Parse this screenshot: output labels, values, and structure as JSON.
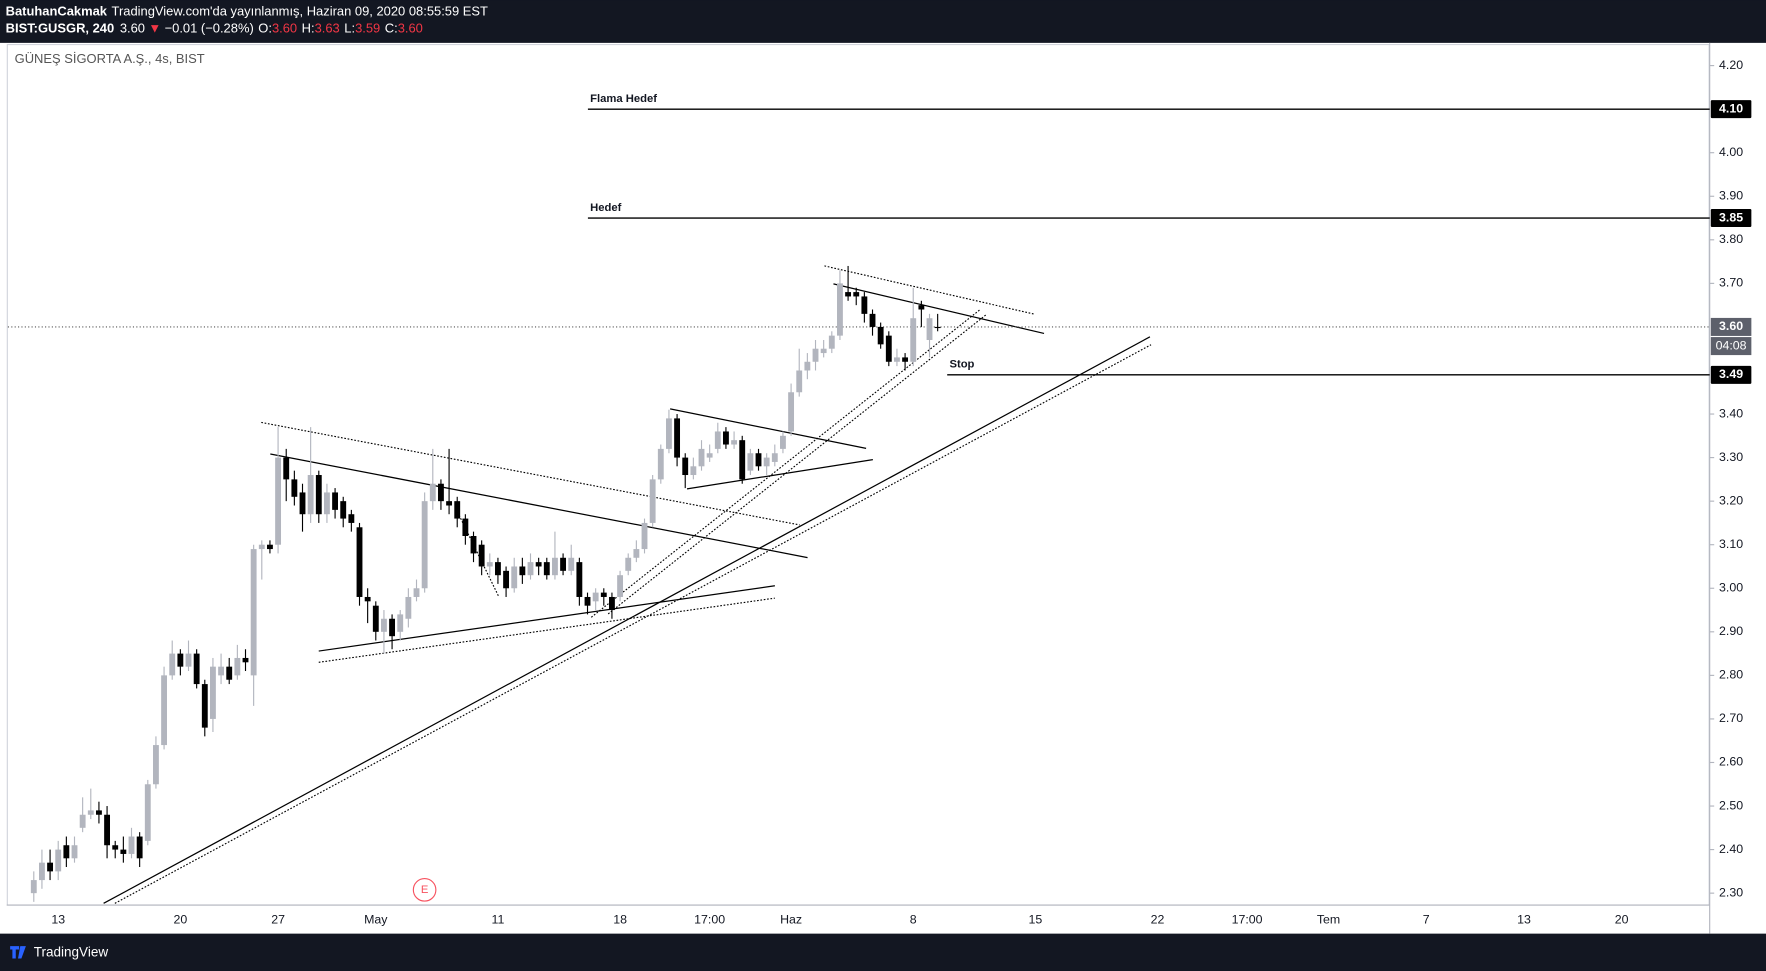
{
  "header": {
    "author": "BatuhanCakmak",
    "published": "TradingView.com'da yayınlanmış, Haziran 09, 2020 08:55:59 EST",
    "symbol": "BIST:GUSGR, 240",
    "price": "3.60",
    "arrow": "▼",
    "change": "−0.01 (−0.28%)",
    "ohlc": [
      {
        "key": "O:",
        "value": "3.60"
      },
      {
        "key": "H:",
        "value": "3.63"
      },
      {
        "key": "L:",
        "value": "3.59"
      },
      {
        "key": "C:",
        "value": "3.60"
      }
    ]
  },
  "footer": {
    "brand": "TradingView"
  },
  "chart_data": {
    "type": "candlestick",
    "title": "GÜNEŞ SİGORTA A.Ş., 4s, BIST",
    "up_color": "#b2b5be",
    "down_color": "#000000",
    "categories": [
      null,
      null,
      null,
      "13",
      null,
      null,
      null,
      null,
      null,
      null,
      null,
      null,
      null,
      null,
      null,
      null,
      null,
      null,
      "20",
      null,
      null,
      null,
      null,
      null,
      null,
      null,
      null,
      null,
      null,
      null,
      "27",
      null,
      null,
      null,
      null,
      null,
      null,
      null,
      null,
      null,
      null,
      null,
      "May",
      null,
      null,
      null,
      null,
      null,
      null,
      null,
      null,
      null,
      null,
      null,
      null,
      null,
      null,
      "11",
      null,
      null,
      null,
      null,
      null,
      null,
      null,
      null,
      null,
      null,
      null,
      null,
      null,
      null,
      "18",
      null,
      null,
      null,
      null,
      null,
      null,
      null,
      null,
      null,
      null,
      "17:00",
      null,
      null,
      null,
      null,
      null,
      null,
      null,
      null,
      null,
      "Haz",
      null,
      null,
      null,
      null,
      null,
      null,
      null,
      null,
      null,
      null,
      null,
      null,
      null,
      null,
      "8",
      null,
      null,
      null,
      null,
      null,
      null,
      null,
      null,
      null,
      null,
      null,
      null,
      null,
      null,
      "15",
      null,
      null,
      null,
      null,
      null,
      null,
      null,
      null,
      null,
      null,
      null,
      null,
      null,
      null,
      "22",
      null,
      null,
      null,
      null,
      null,
      null,
      null,
      null,
      null,
      null,
      "17:00",
      null,
      null,
      null,
      null,
      null,
      null,
      null,
      null,
      null,
      "Tem",
      null,
      null,
      null,
      null,
      null,
      null,
      null,
      null,
      null,
      null,
      null,
      "7",
      null,
      null,
      null,
      null,
      null,
      null,
      null,
      null,
      null,
      null,
      null,
      "13",
      null,
      null,
      null,
      null,
      null,
      null,
      null,
      null,
      null,
      null,
      null,
      "20",
      null,
      null,
      null,
      null,
      null,
      null,
      null,
      null,
      null,
      null
    ],
    "open": [
      2.3,
      2.33,
      2.37,
      2.35,
      2.41,
      2.38,
      2.45,
      2.48,
      2.49,
      2.48,
      2.41,
      2.4,
      2.39,
      2.43,
      2.42,
      2.55,
      2.64,
      2.8,
      2.85,
      2.82,
      2.85,
      2.78,
      2.7,
      2.8,
      2.82,
      2.8,
      2.84,
      2.8,
      3.09,
      3.1,
      3.1,
      3.3,
      3.25,
      3.22,
      3.17,
      3.26,
      3.17,
      3.22,
      3.2,
      3.17,
      3.14,
      2.98,
      2.96,
      2.9,
      2.93,
      2.9,
      2.93,
      2.98,
      3.0,
      3.2,
      3.24,
      3.2,
      3.2,
      3.16,
      3.12,
      3.1,
      3.05,
      3.06,
      3.04,
      3.0,
      3.05,
      3.03,
      3.06,
      3.06,
      3.03,
      3.07,
      3.04,
      3.06,
      2.98,
      2.97,
      2.99,
      2.98,
      2.98,
      3.04,
      3.07,
      3.09,
      3.15,
      3.25,
      3.32,
      3.39,
      3.3,
      3.26,
      3.28,
      3.3,
      3.32,
      3.36,
      3.33,
      3.34,
      3.27,
      3.31,
      3.28,
      3.29,
      3.32,
      3.36,
      3.45,
      3.5,
      3.52,
      3.54,
      3.55,
      3.58,
      3.68,
      3.68,
      3.67,
      3.63,
      3.6,
      3.58,
      3.52,
      3.53,
      3.52,
      3.65,
      3.57,
      3.6,
      null,
      null,
      null,
      null,
      null,
      null,
      null,
      null,
      null,
      null,
      null,
      null,
      null,
      null,
      null,
      null,
      null,
      null,
      null,
      null,
      null,
      null,
      null,
      null,
      null,
      null,
      null,
      null,
      null,
      null,
      null,
      null,
      null,
      null,
      null,
      null,
      null,
      null,
      null,
      null,
      null,
      null,
      null,
      null,
      null,
      null,
      null,
      null,
      null,
      null,
      null,
      null,
      null,
      null,
      null,
      null,
      null,
      null,
      null,
      null,
      null,
      null,
      null,
      null,
      null,
      null,
      null,
      null,
      null,
      null,
      null,
      null,
      null,
      null,
      null,
      null,
      null,
      null,
      null,
      null,
      null,
      null,
      null,
      null,
      null,
      null,
      null,
      null,
      null,
      null,
      null,
      null,
      null,
      null
    ],
    "high": [
      2.35,
      2.4,
      2.4,
      2.42,
      2.43,
      2.43,
      2.52,
      2.54,
      2.51,
      2.5,
      2.42,
      2.43,
      2.45,
      2.44,
      2.56,
      2.66,
      2.82,
      2.88,
      2.86,
      2.88,
      2.86,
      2.79,
      2.84,
      2.85,
      2.84,
      2.87,
      2.86,
      3.1,
      3.11,
      3.11,
      3.37,
      3.32,
      3.27,
      3.24,
      3.37,
      3.27,
      3.24,
      3.23,
      3.21,
      3.18,
      3.15,
      3.0,
      2.97,
      2.95,
      2.94,
      2.95,
      3.0,
      3.02,
      3.22,
      3.32,
      3.25,
      3.32,
      3.21,
      3.17,
      3.13,
      3.11,
      3.08,
      3.07,
      3.05,
      3.07,
      3.07,
      3.08,
      3.07,
      3.07,
      3.13,
      3.08,
      3.1,
      3.07,
      2.99,
      3.0,
      3.0,
      2.99,
      3.04,
      3.08,
      3.11,
      3.16,
      3.26,
      3.33,
      3.41,
      3.4,
      3.31,
      3.3,
      3.34,
      3.33,
      3.38,
      3.37,
      3.36,
      3.35,
      3.32,
      3.32,
      3.31,
      3.33,
      3.36,
      3.47,
      3.55,
      3.54,
      3.57,
      3.57,
      3.59,
      3.73,
      3.74,
      3.69,
      3.68,
      3.64,
      3.61,
      3.59,
      3.55,
      3.54,
      3.69,
      3.66,
      3.63,
      3.63,
      null,
      null,
      null,
      null,
      null,
      null,
      null,
      null,
      null,
      null,
      null,
      null,
      null,
      null,
      null,
      null,
      null,
      null,
      null,
      null,
      null,
      null,
      null,
      null,
      null,
      null,
      null,
      null,
      null,
      null,
      null,
      null,
      null,
      null,
      null,
      null,
      null,
      null,
      null,
      null,
      null,
      null,
      null,
      null,
      null,
      null,
      null,
      null,
      null,
      null,
      null,
      null,
      null,
      null,
      null,
      null,
      null,
      null,
      null,
      null,
      null,
      null,
      null,
      null,
      null,
      null,
      null,
      null,
      null,
      null,
      null,
      null,
      null,
      null,
      null,
      null,
      null,
      null,
      null,
      null,
      null,
      null,
      null,
      null,
      null,
      null,
      null,
      null,
      null,
      null,
      null,
      null,
      null,
      null
    ],
    "low": [
      2.28,
      2.31,
      2.33,
      2.33,
      2.36,
      2.37,
      2.44,
      2.47,
      2.46,
      2.38,
      2.38,
      2.37,
      2.38,
      2.36,
      2.41,
      2.54,
      2.63,
      2.79,
      2.8,
      2.81,
      2.77,
      2.66,
      2.67,
      2.78,
      2.78,
      2.79,
      2.81,
      2.73,
      3.02,
      3.08,
      3.08,
      3.2,
      3.19,
      3.13,
      3.15,
      3.15,
      3.15,
      3.16,
      3.14,
      3.13,
      2.96,
      2.92,
      2.88,
      2.85,
      2.86,
      2.88,
      2.91,
      2.97,
      2.99,
      3.18,
      3.18,
      3.17,
      3.14,
      3.1,
      3.06,
      3.03,
      3.03,
      3.01,
      2.98,
      2.99,
      3.01,
      3.02,
      3.03,
      3.02,
      3.02,
      3.03,
      3.03,
      2.96,
      2.94,
      2.95,
      2.96,
      2.93,
      2.97,
      3.03,
      3.06,
      3.08,
      3.14,
      3.24,
      3.31,
      3.28,
      3.23,
      3.25,
      3.27,
      3.29,
      3.31,
      3.32,
      3.32,
      3.24,
      3.26,
      3.27,
      3.26,
      3.28,
      3.31,
      3.35,
      3.44,
      3.48,
      3.5,
      3.53,
      3.54,
      3.57,
      3.66,
      3.65,
      3.61,
      3.58,
      3.55,
      3.51,
      3.51,
      3.5,
      3.51,
      3.6,
      3.53,
      3.59,
      null,
      null,
      null,
      null,
      null,
      null,
      null,
      null,
      null,
      null,
      null,
      null,
      null,
      null,
      null,
      null,
      null,
      null,
      null,
      null,
      null,
      null,
      null,
      null,
      null,
      null,
      null,
      null,
      null,
      null,
      null,
      null,
      null,
      null,
      null,
      null,
      null,
      null,
      null,
      null,
      null,
      null,
      null,
      null,
      null,
      null,
      null,
      null,
      null,
      null,
      null,
      null,
      null,
      null,
      null,
      null,
      null,
      null,
      null,
      null,
      null,
      null,
      null,
      null,
      null,
      null,
      null,
      null,
      null,
      null,
      null,
      null,
      null,
      null,
      null,
      null,
      null,
      null,
      null,
      null,
      null,
      null,
      null,
      null,
      null,
      null,
      null,
      null,
      null,
      null,
      null,
      null,
      null,
      null
    ],
    "close": [
      2.33,
      2.37,
      2.35,
      2.4,
      2.38,
      2.41,
      2.48,
      2.49,
      2.48,
      2.41,
      2.4,
      2.39,
      2.43,
      2.38,
      2.55,
      2.64,
      2.8,
      2.85,
      2.82,
      2.85,
      2.78,
      2.68,
      2.82,
      2.82,
      2.79,
      2.84,
      2.83,
      3.09,
      3.1,
      3.09,
      3.3,
      3.25,
      3.21,
      3.17,
      3.26,
      3.17,
      3.22,
      3.18,
      3.16,
      3.15,
      2.98,
      2.97,
      2.9,
      2.93,
      2.89,
      2.94,
      2.98,
      3.0,
      3.2,
      3.24,
      3.2,
      3.19,
      3.16,
      3.12,
      3.08,
      3.05,
      3.06,
      3.03,
      3.0,
      3.05,
      3.03,
      3.06,
      3.05,
      3.03,
      3.07,
      3.04,
      3.07,
      2.98,
      2.96,
      2.99,
      2.98,
      2.95,
      3.03,
      3.07,
      3.09,
      3.15,
      3.25,
      3.32,
      3.39,
      3.3,
      3.26,
      3.28,
      3.32,
      3.31,
      3.36,
      3.33,
      3.34,
      3.25,
      3.31,
      3.28,
      3.3,
      3.31,
      3.35,
      3.45,
      3.5,
      3.52,
      3.55,
      3.55,
      3.58,
      3.7,
      3.67,
      3.67,
      3.63,
      3.6,
      3.56,
      3.52,
      3.53,
      3.52,
      3.62,
      3.64,
      3.62,
      3.6,
      null,
      null,
      null,
      null,
      null,
      null,
      null,
      null,
      null,
      null,
      null,
      null,
      null,
      null,
      null,
      null,
      null,
      null,
      null,
      null,
      null,
      null,
      null,
      null,
      null,
      null,
      null,
      null,
      null,
      null,
      null,
      null,
      null,
      null,
      null,
      null,
      null,
      null,
      null,
      null,
      null,
      null,
      null,
      null,
      null,
      null,
      null,
      null,
      null,
      null,
      null,
      null,
      null,
      null,
      null,
      null,
      null,
      null,
      null,
      null,
      null,
      null,
      null,
      null,
      null,
      null,
      null,
      null,
      null,
      null,
      null,
      null,
      null,
      null,
      null,
      null,
      null,
      null,
      null,
      null,
      null,
      null,
      null,
      null,
      null,
      null,
      null,
      null,
      null,
      null,
      null,
      null,
      null,
      null
    ],
    "ylim": [
      2.274,
      4.247
    ],
    "yticks": [
      {
        "value": 4.2,
        "label": "4.20"
      },
      {
        "value": 4.0,
        "label": "4.00"
      },
      {
        "value": 3.9,
        "label": "3.90"
      },
      {
        "value": 3.8,
        "label": "3.80"
      },
      {
        "value": 3.7,
        "label": "3.70"
      },
      {
        "value": 3.4,
        "label": "3.40"
      },
      {
        "value": 3.3,
        "label": "3.30"
      },
      {
        "value": 3.2,
        "label": "3.20"
      },
      {
        "value": 3.1,
        "label": "3.10"
      },
      {
        "value": 3.0,
        "label": "3.00"
      },
      {
        "value": 2.9,
        "label": "2.90"
      },
      {
        "value": 2.8,
        "label": "2.80"
      },
      {
        "value": 2.7,
        "label": "2.70"
      },
      {
        "value": 2.6,
        "label": "2.60"
      },
      {
        "value": 2.5,
        "label": "2.50"
      },
      {
        "value": 2.4,
        "label": "2.40"
      },
      {
        "value": 2.3,
        "label": "2.30"
      }
    ],
    "levels": [
      {
        "label": "Flama Hedef",
        "value": 4.1,
        "value_label": "4.10"
      },
      {
        "label": "Hedef",
        "value": 3.85
      },
      {
        "label": "Stop",
        "value": 3.49
      }
    ],
    "last": {
      "value": 3.6,
      "value_label": "3.60",
      "countdown": "04:08"
    },
    "marker": "E"
  }
}
